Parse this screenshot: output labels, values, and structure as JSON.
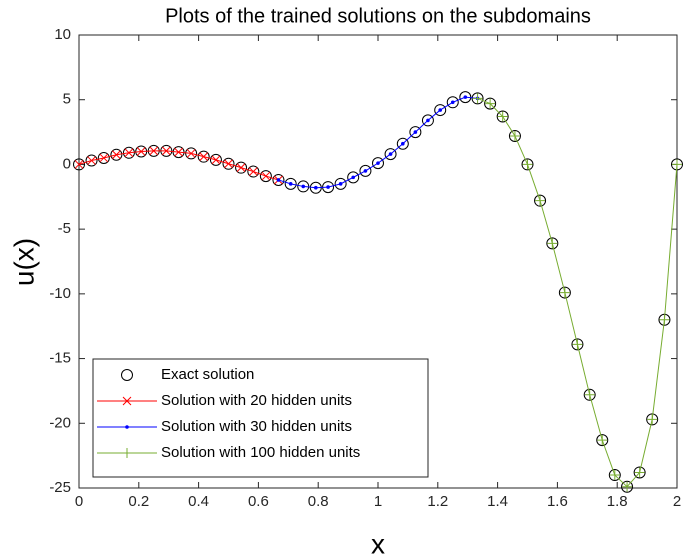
{
  "chart_data": {
    "type": "line",
    "title": "Plots of the trained solutions on the subdomains",
    "xlabel": "x",
    "ylabel": "u(x)",
    "xlim": [
      0,
      2
    ],
    "ylim": [
      -25,
      10
    ],
    "xticks": [
      0,
      0.2,
      0.4,
      0.6,
      0.8,
      1,
      1.2,
      1.4,
      1.6,
      1.8,
      2
    ],
    "yticks": [
      -25,
      -20,
      -15,
      -10,
      -5,
      0,
      5,
      10
    ],
    "grid": false,
    "legend": "lower left",
    "series": [
      {
        "name": "Exact solution",
        "color": "#000000",
        "marker": "o",
        "line": false,
        "x": [
          0,
          0.042,
          0.083,
          0.125,
          0.167,
          0.208,
          0.25,
          0.292,
          0.333,
          0.375,
          0.417,
          0.458,
          0.5,
          0.542,
          0.583,
          0.625,
          0.667,
          0.708,
          0.75,
          0.792,
          0.833,
          0.875,
          0.917,
          0.958,
          1,
          1.042,
          1.083,
          1.125,
          1.167,
          1.208,
          1.25,
          1.292,
          1.333,
          1.375,
          1.417,
          1.458,
          1.5,
          1.542,
          1.583,
          1.625,
          1.667,
          1.708,
          1.75,
          1.792,
          1.833,
          1.875,
          1.917,
          1.958,
          2
        ],
        "values": [
          0,
          0.3,
          0.5,
          0.75,
          0.9,
          1,
          1.05,
          1.05,
          0.95,
          0.85,
          0.6,
          0.35,
          0.05,
          -0.25,
          -0.55,
          -0.9,
          -1.2,
          -1.5,
          -1.7,
          -1.8,
          -1.75,
          -1.5,
          -1,
          -0.5,
          0.1,
          0.8,
          1.6,
          2.5,
          3.4,
          4.2,
          4.8,
          5.2,
          5.1,
          4.7,
          3.7,
          2.2,
          0,
          -2.8,
          -6.1,
          -9.9,
          -13.9,
          -17.8,
          -21.3,
          -24,
          -24.9,
          -23.8,
          -19.7,
          -12,
          0
        ]
      },
      {
        "name": "Solution with 20 hidden units",
        "color": "#ff0000",
        "marker": "x",
        "line": true,
        "x": [
          0,
          0.042,
          0.083,
          0.125,
          0.167,
          0.208,
          0.25,
          0.292,
          0.333,
          0.375,
          0.417,
          0.458,
          0.5,
          0.542,
          0.583,
          0.625,
          0.667
        ],
        "values": [
          0,
          0.3,
          0.5,
          0.75,
          0.9,
          1,
          1.05,
          1.05,
          0.95,
          0.85,
          0.6,
          0.35,
          0.05,
          -0.25,
          -0.55,
          -0.9,
          -1.2
        ]
      },
      {
        "name": "Solution with 30 hidden units",
        "color": "#0000ff",
        "marker": ".",
        "line": true,
        "x": [
          0.667,
          0.708,
          0.75,
          0.792,
          0.833,
          0.875,
          0.917,
          0.958,
          1,
          1.042,
          1.083,
          1.125,
          1.167,
          1.208,
          1.25,
          1.292,
          1.333
        ],
        "values": [
          -1.2,
          -1.5,
          -1.7,
          -1.8,
          -1.75,
          -1.5,
          -1,
          -0.5,
          0.1,
          0.8,
          1.6,
          2.5,
          3.4,
          4.2,
          4.8,
          5.2,
          5.1
        ]
      },
      {
        "name": "Solution with 100 hidden units",
        "color": "#77ac30",
        "marker": "+",
        "line": true,
        "x": [
          1.333,
          1.375,
          1.417,
          1.458,
          1.5,
          1.542,
          1.583,
          1.625,
          1.667,
          1.708,
          1.75,
          1.792,
          1.833,
          1.875,
          1.917,
          1.958,
          2
        ],
        "values": [
          5.1,
          4.7,
          3.7,
          2.2,
          0,
          -2.8,
          -6.1,
          -9.9,
          -13.9,
          -17.8,
          -21.3,
          -24,
          -24.9,
          -23.8,
          -19.7,
          -12,
          0
        ]
      }
    ]
  }
}
